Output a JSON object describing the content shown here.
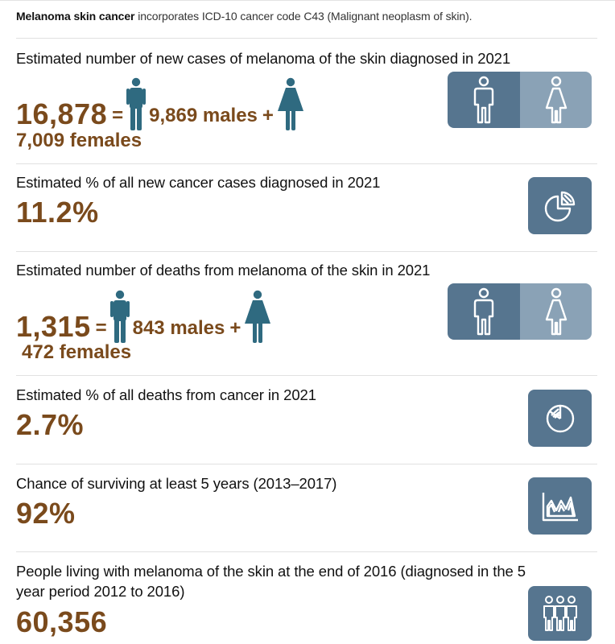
{
  "intro": {
    "bold": "Melanoma skin cancer",
    "rest": " incorporates ICD-10 cancer code C43 (Malignant neoplasm of skin)."
  },
  "new_cases": {
    "heading": "Estimated number of new cases of melanoma of the skin diagnosed in 2021",
    "total": "16,878",
    "equals": "=",
    "males": "9,869 males",
    "plus": "+",
    "females": "7,009 females"
  },
  "pct_new": {
    "heading": "Estimated % of all new cancer cases diagnosed in 2021",
    "value": "11.2%"
  },
  "deaths": {
    "heading": "Estimated number of deaths from melanoma of the skin in 2021",
    "total": "1,315",
    "equals": "=",
    "males": "843 males",
    "plus": "+",
    "females": "472 females"
  },
  "pct_deaths": {
    "heading": "Estimated % of all deaths from cancer in 2021",
    "value": "2.7%"
  },
  "survival": {
    "heading": "Chance of surviving at least 5 years (2013–2017)",
    "value": "92%"
  },
  "prevalence": {
    "heading_line1": "People living with melanoma of the skin at the end of 2016 (diagnosed in the 5",
    "heading_line2": "year period 2012 to 2016)",
    "value": "60,356"
  },
  "colors": {
    "stat_brown": "#7a4a1c",
    "figure_teal": "#2f6a80",
    "tile_dark": "#56758f",
    "tile_light": "#8aa2b6"
  },
  "icons": [
    "male-figure-icon",
    "female-figure-icon",
    "male-outline-icon",
    "female-outline-icon",
    "pie-chart-icon",
    "area-chart-icon",
    "people-group-icon"
  ]
}
